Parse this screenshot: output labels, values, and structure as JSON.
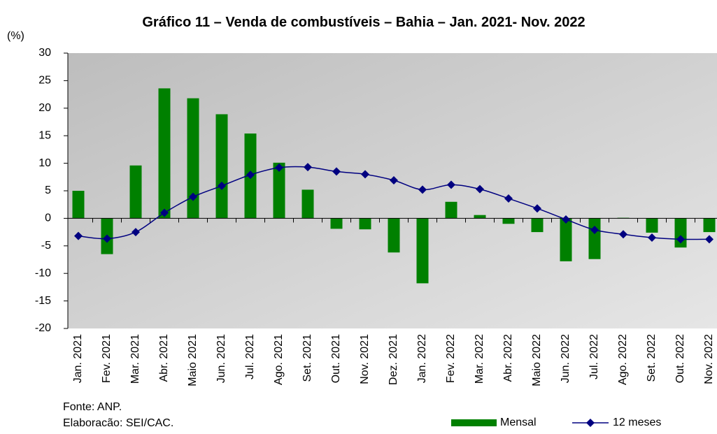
{
  "chart_data": {
    "type": "bar-line",
    "title": "Gráfico 11 – Venda de combustíveis – Bahia – Jan. 2021- Nov. 2022",
    "y_label": "(%)",
    "source": "Fonte: ANP.",
    "credit": "Elaboracão: SEI/CAC.",
    "categories": [
      "Jan. 2021",
      "Fev. 2021",
      "Mar. 2021",
      "Abr. 2021",
      "Maio 2021",
      "Jun. 2021",
      "Jul. 2021",
      "Ago. 2021",
      "Set. 2021",
      "Out. 2021",
      "Nov. 2021",
      "Dez. 2021",
      "Jan. 2022",
      "Fev. 2022",
      "Mar. 2022",
      "Abr. 2022",
      "Maio 2022",
      "Jun. 2022",
      "Jul. 2022",
      "Ago. 2022",
      "Set. 2022",
      "Out. 2022",
      "Nov. 2022"
    ],
    "series": [
      {
        "name": "Mensal",
        "color": "#008000",
        "kind": "bar",
        "values": [
          5.0,
          -6.5,
          9.6,
          23.6,
          21.8,
          18.9,
          15.4,
          10.1,
          5.2,
          -1.9,
          -2.0,
          -6.2,
          -11.8,
          3.0,
          0.6,
          -1.0,
          -2.5,
          -7.8,
          -7.4,
          0.1,
          -2.6,
          -5.3,
          -2.5
        ]
      },
      {
        "name": "12 meses",
        "color": "#000080",
        "kind": "line",
        "values": [
          -3.2,
          -3.7,
          -2.5,
          1.0,
          3.9,
          5.9,
          7.9,
          9.2,
          9.3,
          8.5,
          8.0,
          6.9,
          5.2,
          6.1,
          5.3,
          3.6,
          1.8,
          -0.2,
          -2.1,
          -2.9,
          -3.5,
          -3.8,
          -3.8
        ]
      }
    ],
    "ylim": [
      -20,
      30
    ],
    "yticks": [
      -20,
      -15,
      -10,
      -5,
      0,
      5,
      10,
      15,
      20,
      25,
      30
    ]
  }
}
